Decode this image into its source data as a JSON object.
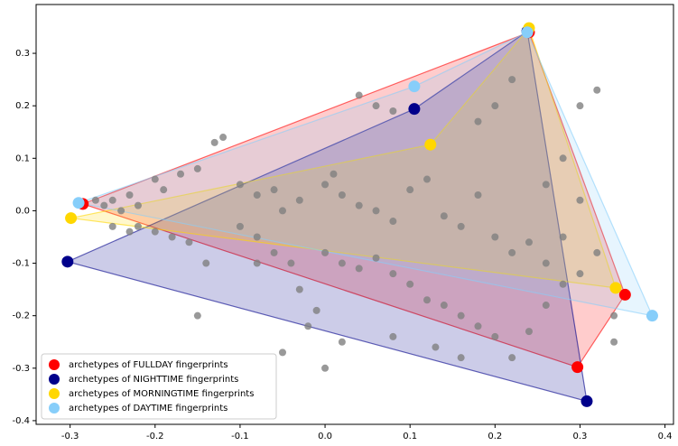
{
  "chart_data": {
    "type": "scatter",
    "xlim": [
      -0.34,
      0.41
    ],
    "ylim": [
      -0.407,
      0.393
    ],
    "xticks": [
      -0.3,
      -0.2,
      -0.1,
      {
        "value": 0,
        "label": "0.0"
      },
      0.1,
      0.2,
      0.3,
      0.4
    ],
    "yticks": [
      -0.4,
      -0.3,
      -0.2,
      -0.1,
      {
        "value": 0,
        "label": "0.0"
      },
      0.1,
      0.2,
      0.3
    ],
    "legend": "lower left",
    "points": {
      "color": "#808080",
      "x": [
        -0.27,
        -0.26,
        -0.25,
        -0.24,
        -0.23,
        -0.22,
        -0.2,
        -0.19,
        -0.17,
        -0.15,
        -0.13,
        -0.12,
        -0.1,
        -0.08,
        -0.06,
        -0.05,
        -0.03,
        0.0,
        0.01,
        0.02,
        0.04,
        0.06,
        0.08,
        0.1,
        0.12,
        0.14,
        0.16,
        0.18,
        0.2,
        0.22,
        0.24,
        0.26,
        0.28,
        0.3,
        0.32,
        0.2,
        0.18,
        0.22,
        0.06,
        0.04,
        0.08,
        -0.18,
        -0.2,
        -0.22,
        -0.16,
        -0.14,
        -0.1,
        -0.08,
        -0.06,
        -0.04,
        0.0,
        0.02,
        0.04,
        0.06,
        0.08,
        0.1,
        0.12,
        0.14,
        0.16,
        0.18,
        0.2,
        0.22,
        0.24,
        0.26,
        0.28,
        0.3,
        0.32,
        0.34,
        0.34,
        -0.03,
        -0.01,
        -0.02,
        0.02,
        0.0,
        -0.05,
        0.08,
        0.13,
        0.16,
        -0.15,
        -0.08,
        0.28,
        0.26,
        0.3,
        -0.25,
        -0.23
      ],
      "values": [
        0.02,
        0.01,
        0.02,
        0.0,
        0.03,
        0.01,
        0.06,
        0.04,
        0.07,
        0.08,
        0.13,
        0.14,
        0.05,
        0.03,
        0.04,
        0.0,
        0.02,
        0.05,
        0.07,
        0.03,
        0.01,
        0.0,
        -0.02,
        0.04,
        0.06,
        -0.01,
        -0.03,
        0.03,
        -0.05,
        -0.08,
        -0.06,
        -0.1,
        -0.05,
        0.2,
        0.23,
        0.2,
        0.17,
        0.25,
        0.2,
        0.22,
        0.19,
        -0.05,
        -0.04,
        -0.03,
        -0.06,
        -0.1,
        -0.03,
        -0.05,
        -0.08,
        -0.1,
        -0.08,
        -0.1,
        -0.11,
        -0.09,
        -0.12,
        -0.14,
        -0.17,
        -0.18,
        -0.2,
        -0.22,
        -0.24,
        -0.28,
        -0.23,
        -0.18,
        -0.14,
        -0.12,
        -0.08,
        -0.2,
        -0.25,
        -0.15,
        -0.19,
        -0.22,
        -0.25,
        -0.3,
        -0.27,
        -0.24,
        -0.26,
        -0.28,
        -0.2,
        -0.1,
        0.1,
        0.05,
        0.02,
        -0.03,
        -0.04
      ]
    },
    "series": [
      {
        "name": "archetypes of FULLDAY fingerprints",
        "color": "#ff0000",
        "x": [
          -0.285,
          0.24,
          0.353,
          0.297
        ],
        "values": [
          0.013,
          0.34,
          -0.16,
          -0.298
        ]
      },
      {
        "name": "archetypes of NIGHTTIME fingerprints",
        "color": "#00008b",
        "x": [
          -0.303,
          0.105,
          0.238,
          0.308
        ],
        "values": [
          -0.097,
          0.194,
          0.342,
          -0.363
        ]
      },
      {
        "name": "archetypes of MORNINGTIME fingerprints",
        "color": "#ffd700",
        "x": [
          -0.299,
          0.124,
          0.24,
          0.342
        ],
        "values": [
          -0.014,
          0.126,
          0.348,
          -0.147
        ]
      },
      {
        "name": "archetypes of DAYTIME fingerprints",
        "color": "#87cefa",
        "x": [
          -0.29,
          0.105,
          0.238,
          0.385
        ],
        "values": [
          0.015,
          0.237,
          0.34,
          -0.2
        ]
      }
    ]
  }
}
